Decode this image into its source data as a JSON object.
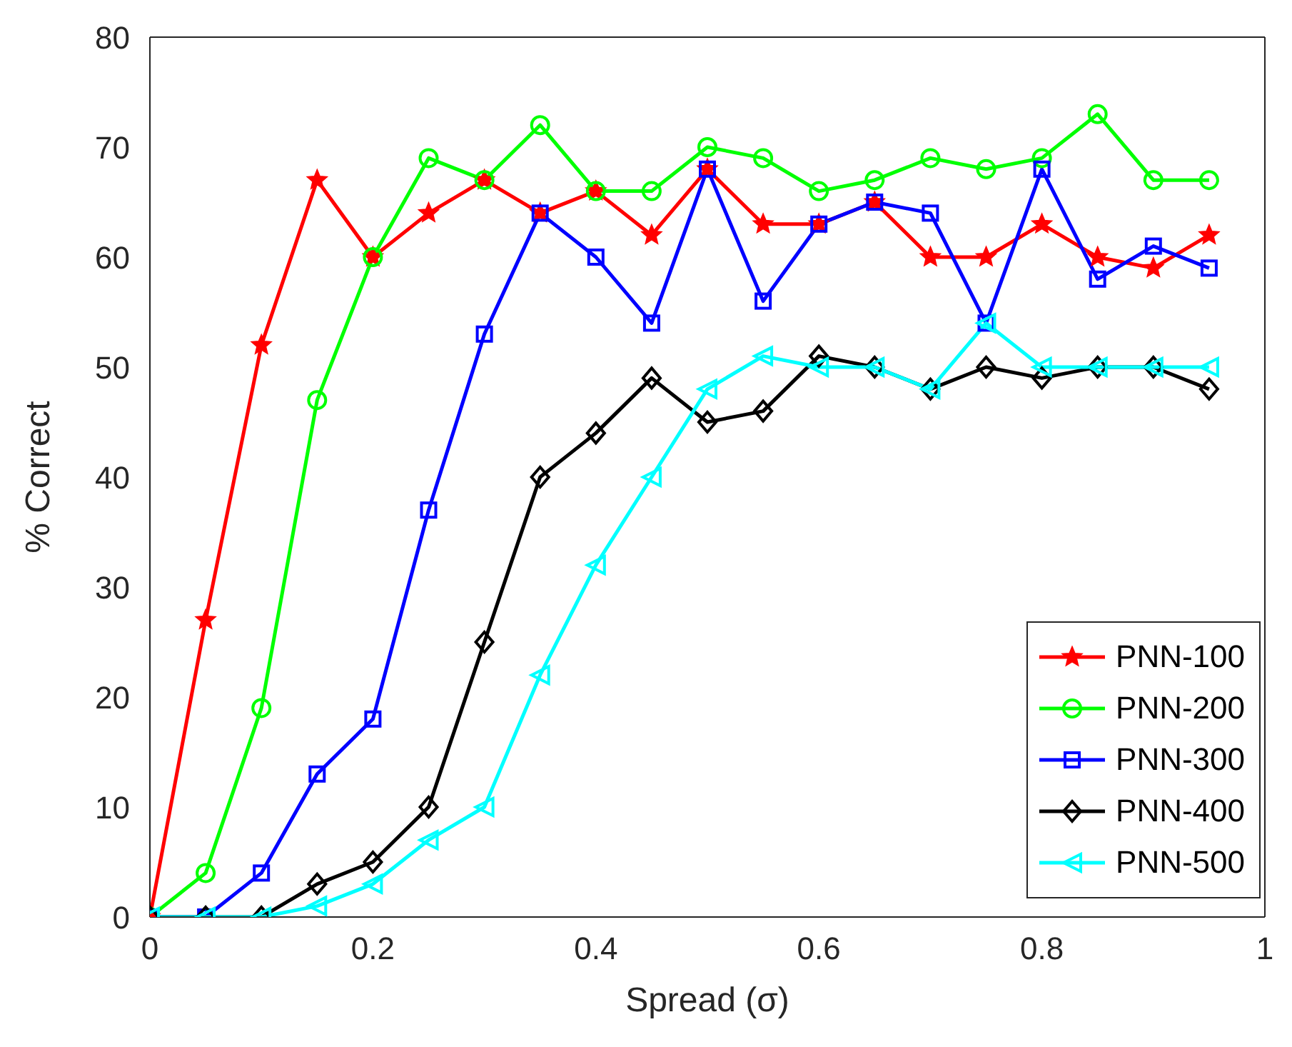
{
  "chart_data": {
    "type": "line",
    "xlabel": "Spread (σ)",
    "ylabel": "% Correct",
    "x": [
      0,
      0.05,
      0.1,
      0.15,
      0.2,
      0.25,
      0.3,
      0.35,
      0.4,
      0.45,
      0.5,
      0.55,
      0.6,
      0.65,
      0.7,
      0.75,
      0.8,
      0.85,
      0.9,
      0.95
    ],
    "series": [
      {
        "name": "PNN-100",
        "color": "#ff0000",
        "marker": "star",
        "values": [
          0,
          27,
          52,
          67,
          60,
          64,
          67,
          64,
          66,
          62,
          68,
          63,
          63,
          65,
          60,
          60,
          63,
          60,
          59,
          62
        ]
      },
      {
        "name": "PNN-200",
        "color": "#00ff00",
        "marker": "circle",
        "values": [
          0,
          4,
          19,
          47,
          60,
          69,
          67,
          72,
          66,
          66,
          70,
          69,
          66,
          67,
          69,
          68,
          69,
          73,
          67,
          67
        ]
      },
      {
        "name": "PNN-300",
        "color": "#0000ff",
        "marker": "square",
        "values": [
          0,
          0,
          4,
          13,
          18,
          37,
          53,
          64,
          60,
          54,
          68,
          56,
          63,
          65,
          64,
          54,
          68,
          58,
          61,
          59
        ]
      },
      {
        "name": "PNN-400",
        "color": "#000000",
        "marker": "diamond",
        "values": [
          0,
          0,
          0,
          3,
          5,
          10,
          25,
          40,
          44,
          49,
          45,
          46,
          51,
          50,
          48,
          50,
          49,
          50,
          50,
          48
        ]
      },
      {
        "name": "PNN-500",
        "color": "#00ffff",
        "marker": "triangle",
        "values": [
          0,
          0,
          0,
          1,
          3,
          7,
          10,
          22,
          32,
          40,
          48,
          51,
          50,
          50,
          48,
          54,
          50,
          50,
          50,
          50
        ]
      }
    ],
    "xlim": [
      0,
      1
    ],
    "xticks": [
      0,
      0.2,
      0.4,
      0.6,
      0.8,
      1
    ],
    "ylim": [
      0,
      80
    ],
    "yticks": [
      0,
      10,
      20,
      30,
      40,
      50,
      60,
      70,
      80
    ],
    "grid": false,
    "legend": "bottom right",
    "line_style": "solid"
  }
}
